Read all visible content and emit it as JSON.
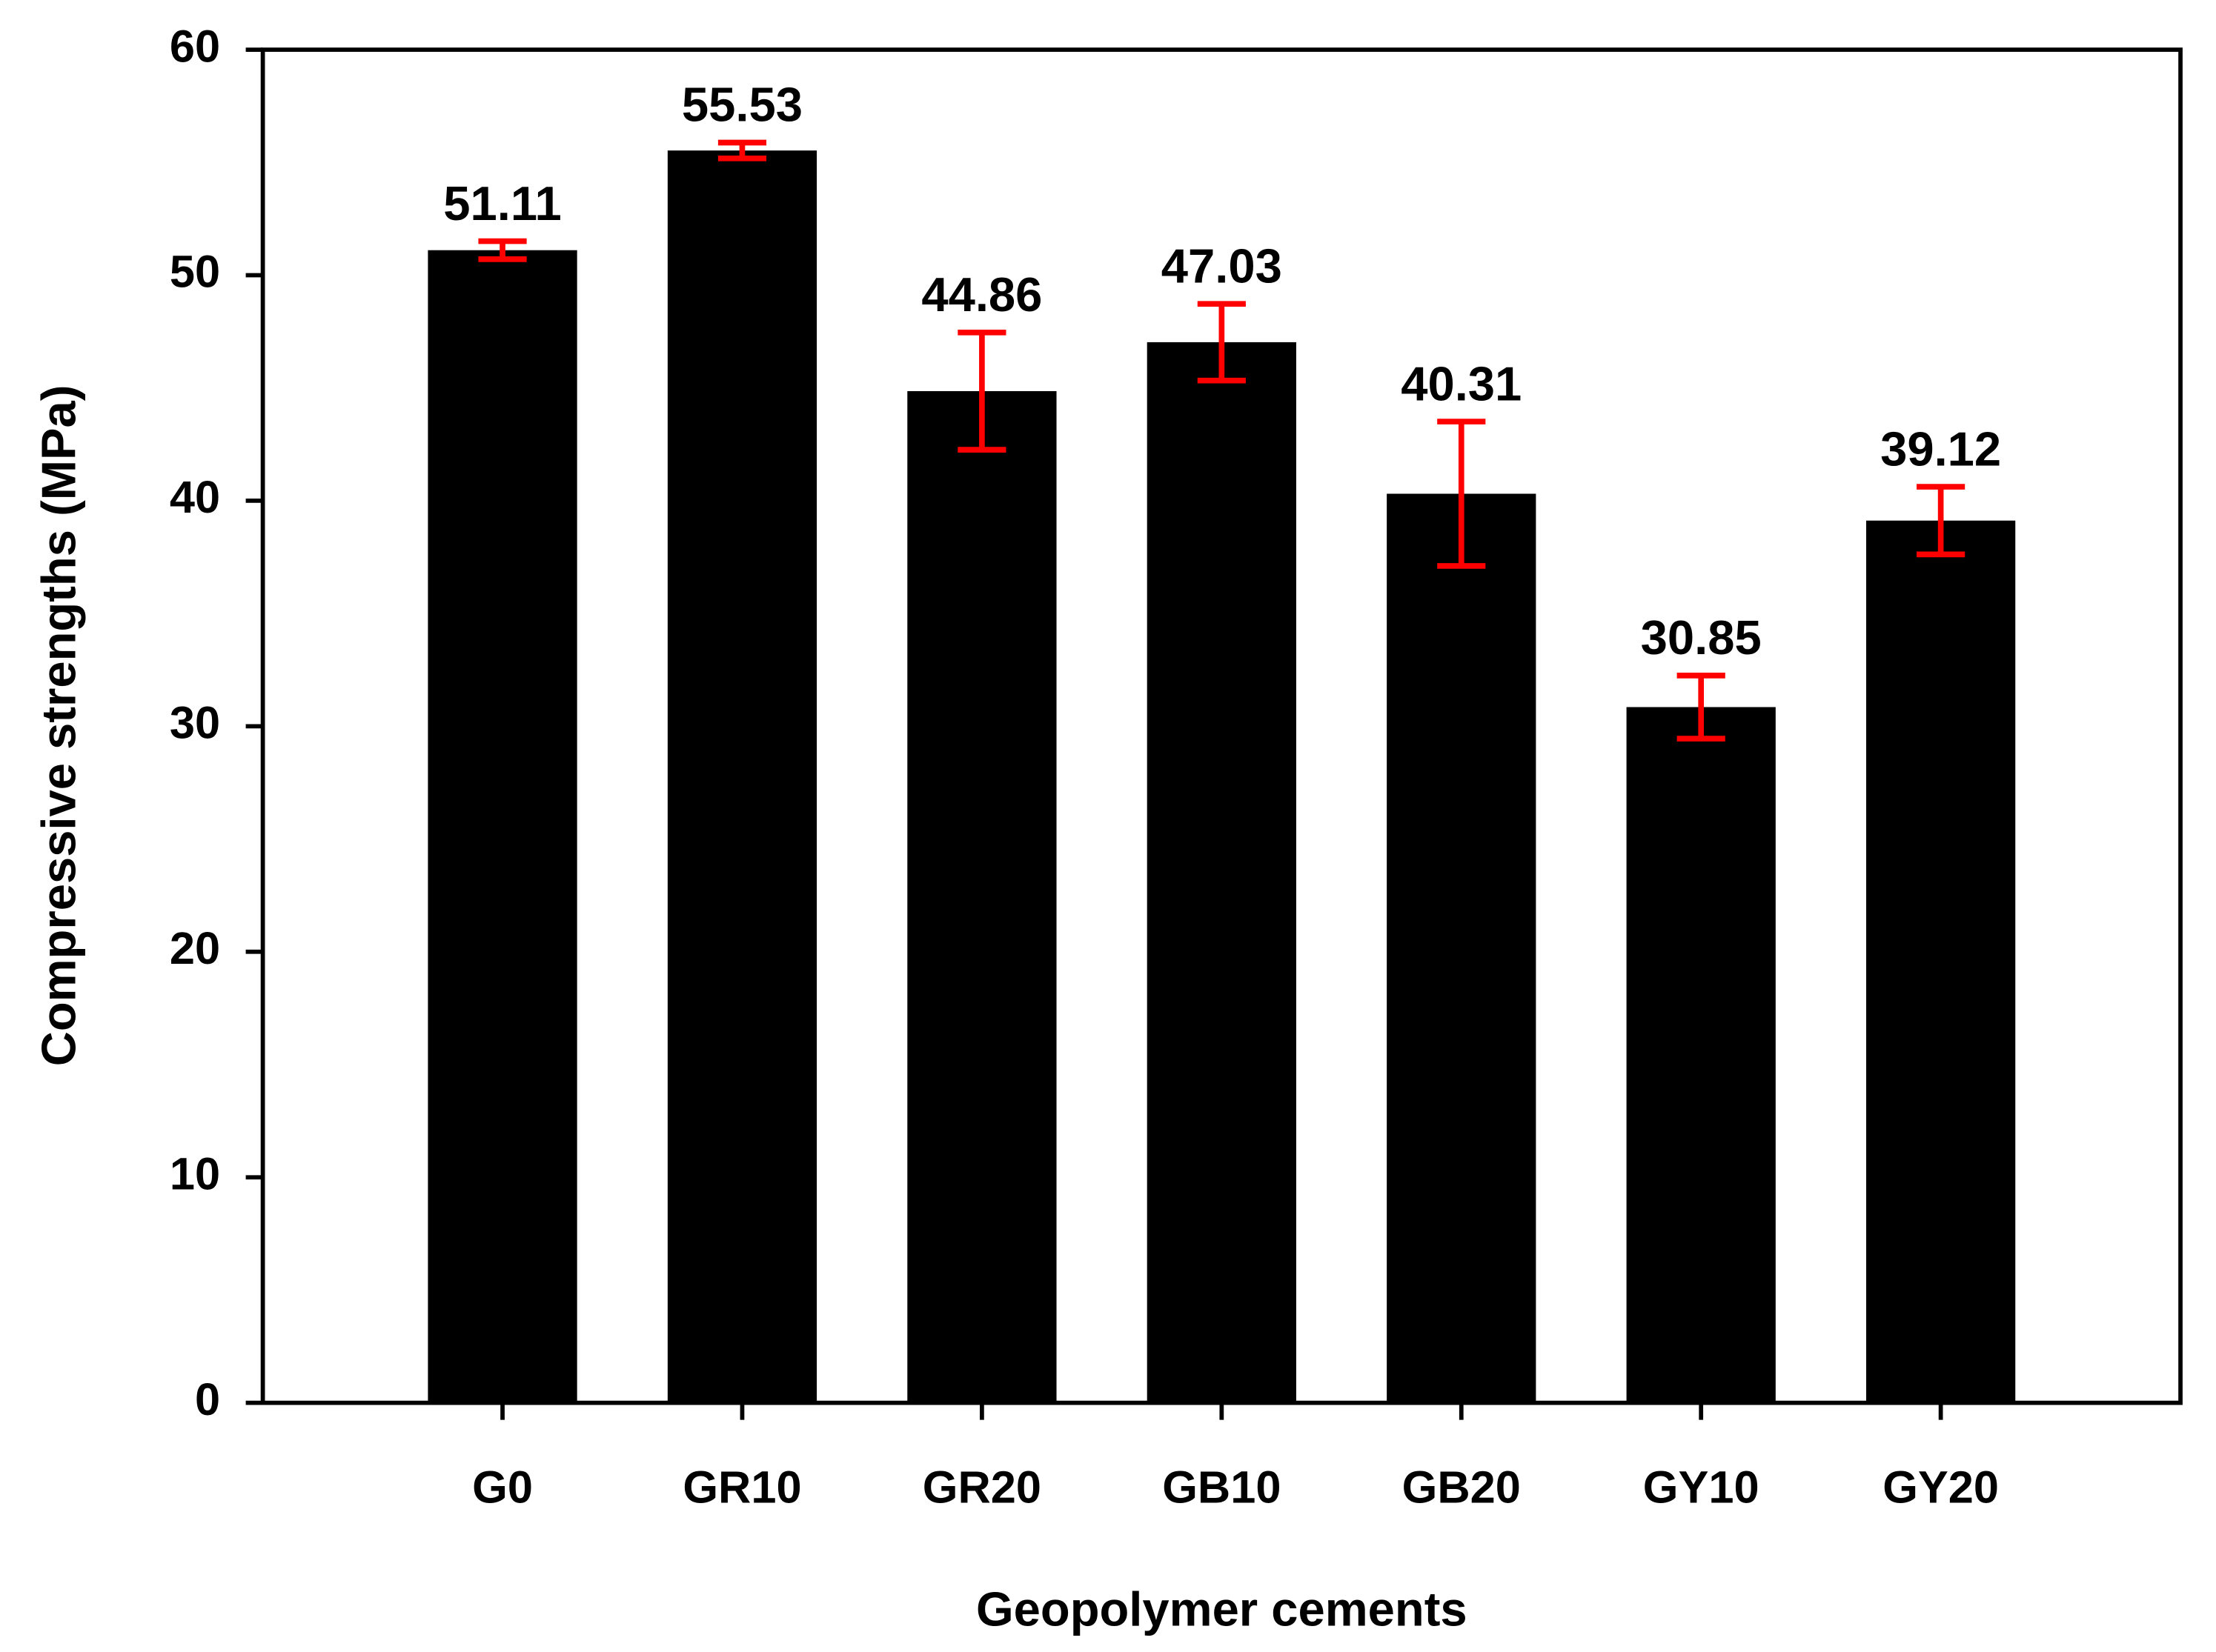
{
  "chart_data": {
    "type": "bar",
    "xlabel": "Geopolymer cements",
    "ylabel": "Compressive strengths (MPa)",
    "categories": [
      "G0",
      "GR10",
      "GR20",
      "GB10",
      "GB20",
      "GY10",
      "GY20"
    ],
    "values": [
      51.11,
      55.53,
      44.86,
      47.03,
      40.31,
      30.85,
      39.12
    ],
    "errors": [
      0.4,
      0.35,
      2.6,
      1.7,
      3.2,
      1.4,
      1.5
    ],
    "color": "#000000",
    "error_color": "#ff0000",
    "ylim": [
      0,
      60
    ],
    "yticks": [
      0,
      10,
      20,
      30,
      40,
      50,
      60
    ],
    "grid": false
  }
}
